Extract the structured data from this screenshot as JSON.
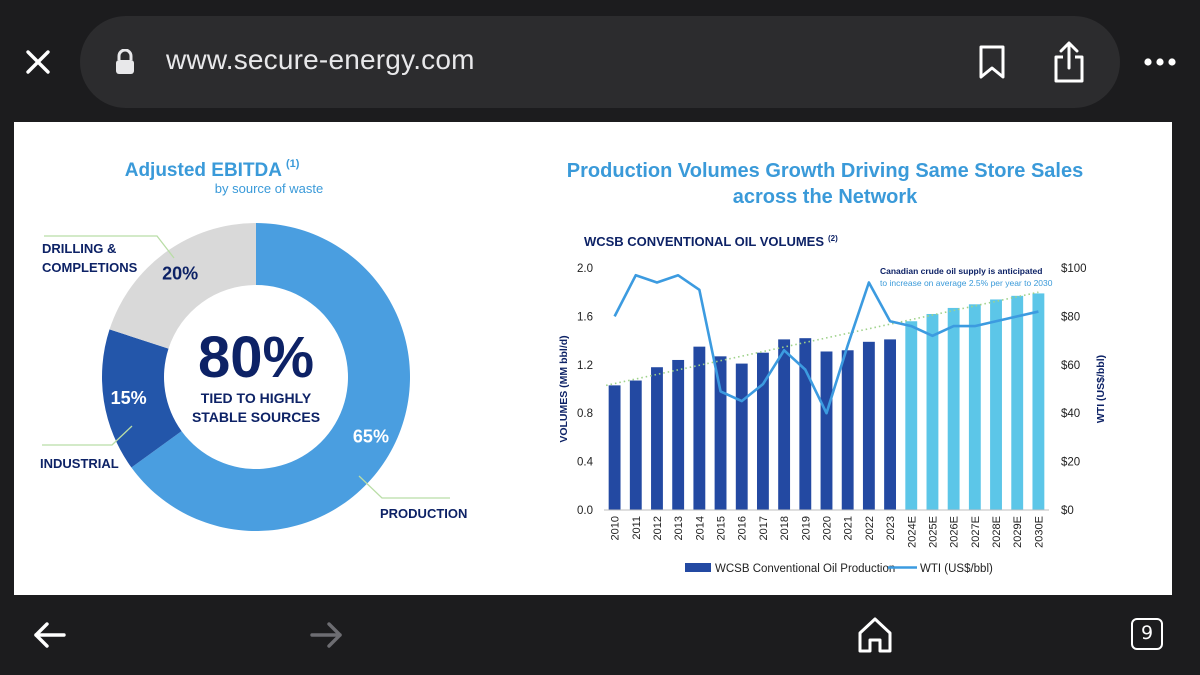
{
  "browser": {
    "url": "www.secure-energy.com",
    "tab_count": "9",
    "icons": {
      "close": "close-icon",
      "lock": "lock-icon",
      "bookmark": "bookmark-icon",
      "share": "share-icon",
      "more": "more-icon",
      "back": "back-arrow-icon",
      "forward": "forward-arrow-icon",
      "home": "home-icon",
      "tabs": "tabs-icon"
    }
  },
  "donut": {
    "title": "Adjusted EBITDA",
    "title_note": "(1)",
    "subtitle": "by source of waste",
    "center_value": "80%",
    "center_line1": "TIED TO HIGHLY",
    "center_line2": "STABLE SOURCES",
    "labels": {
      "drilling_1": "DRILLING &",
      "drilling_2": "COMPLETIONS",
      "industrial": "INDUSTRIAL",
      "production": "PRODUCTION"
    },
    "colors": {
      "production": "#4a9ee0",
      "industrial": "#2356aa",
      "drilling": "#d9d9d9",
      "title": "#3a9ad9",
      "dark": "#0d2266"
    }
  },
  "production": {
    "title_line1": "Production Volumes Growth Driving Same Store Sales",
    "title_line2": "across the Network",
    "chart_title": "WCSB CONVENTIONAL OIL VOLUMES",
    "chart_title_note": "(2)",
    "annotation_line1": "Canadian crude oil supply is anticipated",
    "annotation_line2": "to increase on average  2.5% per year to 2030"
  },
  "chart_data": [
    {
      "type": "pie",
      "title": "Adjusted EBITDA",
      "subtitle": "by source of waste",
      "categories": [
        "PRODUCTION",
        "INDUSTRIAL",
        "DRILLING & COMPLETIONS"
      ],
      "values": [
        65,
        15,
        20
      ],
      "value_labels": [
        "65%",
        "15%",
        "20%"
      ],
      "center_text": "80%"
    },
    {
      "type": "bar",
      "title": "WCSB CONVENTIONAL OIL VOLUMES",
      "categories": [
        "2010",
        "2011",
        "2012",
        "2013",
        "2014",
        "2015",
        "2016",
        "2017",
        "2018",
        "2019",
        "2020",
        "2021",
        "2022",
        "2023",
        "2024E",
        "2025E",
        "2026E",
        "2027E",
        "2028E",
        "2029E",
        "2030E"
      ],
      "series": [
        {
          "name": "WCSB Conventional Oil Production",
          "axis": "left",
          "values": [
            1.03,
            1.07,
            1.18,
            1.24,
            1.35,
            1.27,
            1.21,
            1.3,
            1.41,
            1.42,
            1.31,
            1.32,
            1.39,
            1.41,
            1.56,
            1.62,
            1.67,
            1.7,
            1.74,
            1.77,
            1.79
          ],
          "colors": [
            "#2349a2",
            "#2349a2",
            "#2349a2",
            "#2349a2",
            "#2349a2",
            "#2349a2",
            "#2349a2",
            "#2349a2",
            "#2349a2",
            "#2349a2",
            "#2349a2",
            "#2349a2",
            "#2349a2",
            "#2349a2",
            "#5cc6e8",
            "#5cc6e8",
            "#5cc6e8",
            "#5cc6e8",
            "#5cc6e8",
            "#5cc6e8",
            "#5cc6e8"
          ]
        },
        {
          "name": "WTI (US$/bbl)",
          "type": "line",
          "axis": "right",
          "values": [
            80,
            97,
            94,
            97,
            91,
            49,
            45,
            52,
            66,
            58,
            40,
            68,
            94,
            78,
            76,
            72,
            76,
            76,
            78,
            80,
            82
          ],
          "color": "#3c9be0"
        }
      ],
      "trendline": {
        "style": "dotted",
        "from": 1.03,
        "to": 1.8
      },
      "ylabel": "VOLUMES (MM bbl/d)",
      "y2label": "WTI (US$/bbl)",
      "ylim": [
        0,
        2.0
      ],
      "y2lim": [
        0,
        100
      ],
      "yticks": [
        "0.0",
        "0.4",
        "0.8",
        "1.2",
        "1.6",
        "2.0"
      ],
      "y2ticks": [
        "$0",
        "$20",
        "$40",
        "$60",
        "$80",
        "$100"
      ],
      "legend": [
        "WCSB Conventional Oil Production",
        "WTI (US$/bbl)"
      ],
      "legend_position": "bottom"
    }
  ]
}
